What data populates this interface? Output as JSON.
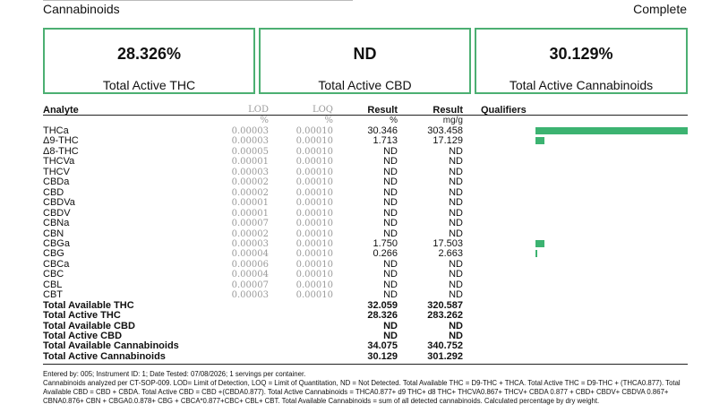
{
  "header": {
    "section_title": "Cannabinoids",
    "status": "Complete"
  },
  "summary": [
    {
      "value": "28.326%",
      "label": "Total Active THC"
    },
    {
      "value": "ND",
      "label": "Total Active CBD"
    },
    {
      "value": "30.129%",
      "label": "Total Active Cannabinoids"
    }
  ],
  "table": {
    "columns": {
      "analyte": "Analyte",
      "lod": "LOD",
      "loq": "LOQ",
      "result_pct": "Result",
      "result_mg": "Result",
      "qualifiers": "Qualifiers"
    },
    "units": {
      "lod": "%",
      "loq": "%",
      "result_pct": "%",
      "result_mg": "mg/g"
    },
    "rows": [
      {
        "name": "THCa",
        "lod": "0.00003",
        "loq": "0.00010",
        "pct": "30.346",
        "mg": "303.458"
      },
      {
        "name": "Δ9-THC",
        "lod": "0.00003",
        "loq": "0.00010",
        "pct": "1.713",
        "mg": "17.129"
      },
      {
        "name": "Δ8-THC",
        "lod": "0.00005",
        "loq": "0.00010",
        "pct": "ND",
        "mg": "ND"
      },
      {
        "name": "THCVa",
        "lod": "0.00001",
        "loq": "0.00010",
        "pct": "ND",
        "mg": "ND"
      },
      {
        "name": "THCV",
        "lod": "0.00003",
        "loq": "0.00010",
        "pct": "ND",
        "mg": "ND"
      },
      {
        "name": "CBDa",
        "lod": "0.00002",
        "loq": "0.00010",
        "pct": "ND",
        "mg": "ND"
      },
      {
        "name": "CBD",
        "lod": "0.00002",
        "loq": "0.00010",
        "pct": "ND",
        "mg": "ND"
      },
      {
        "name": "CBDVa",
        "lod": "0.00001",
        "loq": "0.00010",
        "pct": "ND",
        "mg": "ND"
      },
      {
        "name": "CBDV",
        "lod": "0.00001",
        "loq": "0.00010",
        "pct": "ND",
        "mg": "ND"
      },
      {
        "name": "CBNa",
        "lod": "0.00007",
        "loq": "0.00010",
        "pct": "ND",
        "mg": "ND"
      },
      {
        "name": "CBN",
        "lod": "0.00002",
        "loq": "0.00010",
        "pct": "ND",
        "mg": "ND"
      },
      {
        "name": "CBGa",
        "lod": "0.00003",
        "loq": "0.00010",
        "pct": "1.750",
        "mg": "17.503"
      },
      {
        "name": "CBG",
        "lod": "0.00004",
        "loq": "0.00010",
        "pct": "0.266",
        "mg": "2.663"
      },
      {
        "name": "CBCa",
        "lod": "0.00006",
        "loq": "0.00010",
        "pct": "ND",
        "mg": "ND"
      },
      {
        "name": "CBC",
        "lod": "0.00004",
        "loq": "0.00010",
        "pct": "ND",
        "mg": "ND"
      },
      {
        "name": "CBL",
        "lod": "0.00007",
        "loq": "0.00010",
        "pct": "ND",
        "mg": "ND"
      },
      {
        "name": "CBT",
        "lod": "0.00003",
        "loq": "0.00010",
        "pct": "ND",
        "mg": "ND"
      }
    ],
    "totals": [
      {
        "name": "Total Available THC",
        "pct": "32.059",
        "mg": "320.587"
      },
      {
        "name": "Total Active THC",
        "pct": "28.326",
        "mg": "283.262"
      },
      {
        "name": "Total Available CBD",
        "pct": "ND",
        "mg": "ND"
      },
      {
        "name": "Total Active CBD",
        "pct": "ND",
        "mg": "ND"
      },
      {
        "name": "Total Available Cannabinoids",
        "pct": "34.075",
        "mg": "340.752"
      },
      {
        "name": "Total Active Cannabinoids",
        "pct": "30.129",
        "mg": "301.292"
      }
    ],
    "bar_color": "#3cb371",
    "bar_scale_max_pct": 30.346
  },
  "footer": {
    "line1": "Entered by: 005; Instrument ID: 1; Date Tested: 07/08/2026; 1 servings per container.",
    "line2": "Cannabinoids analyzed per CT-SOP-009. LOD= Limit of Detection, LOQ = Limit of Quantitation, ND = Not Detected. Total Available THC = D9-THC + THCA. Total Active THC = D9-THC + (THCA0.877). Total Available CBD = CBD + CBDA. Total Active CBD = CBD +(CBDA0.877). Total Active Cannabinoids = THCA0.877+ d9 THC+ d8 THC+ THCVA0.867+ THCV+ CBDA 0.877 + CBD+ CBDV+ CBDVA 0.867+ CBNA0.876+ CBN + CBGA0.0.878+ CBG + CBCA*0.877+CBC+ CBL+ CBT. Total Available Cannabinoids = sum of all detected cannabinoids. Calculated percentage by dry weight."
  }
}
